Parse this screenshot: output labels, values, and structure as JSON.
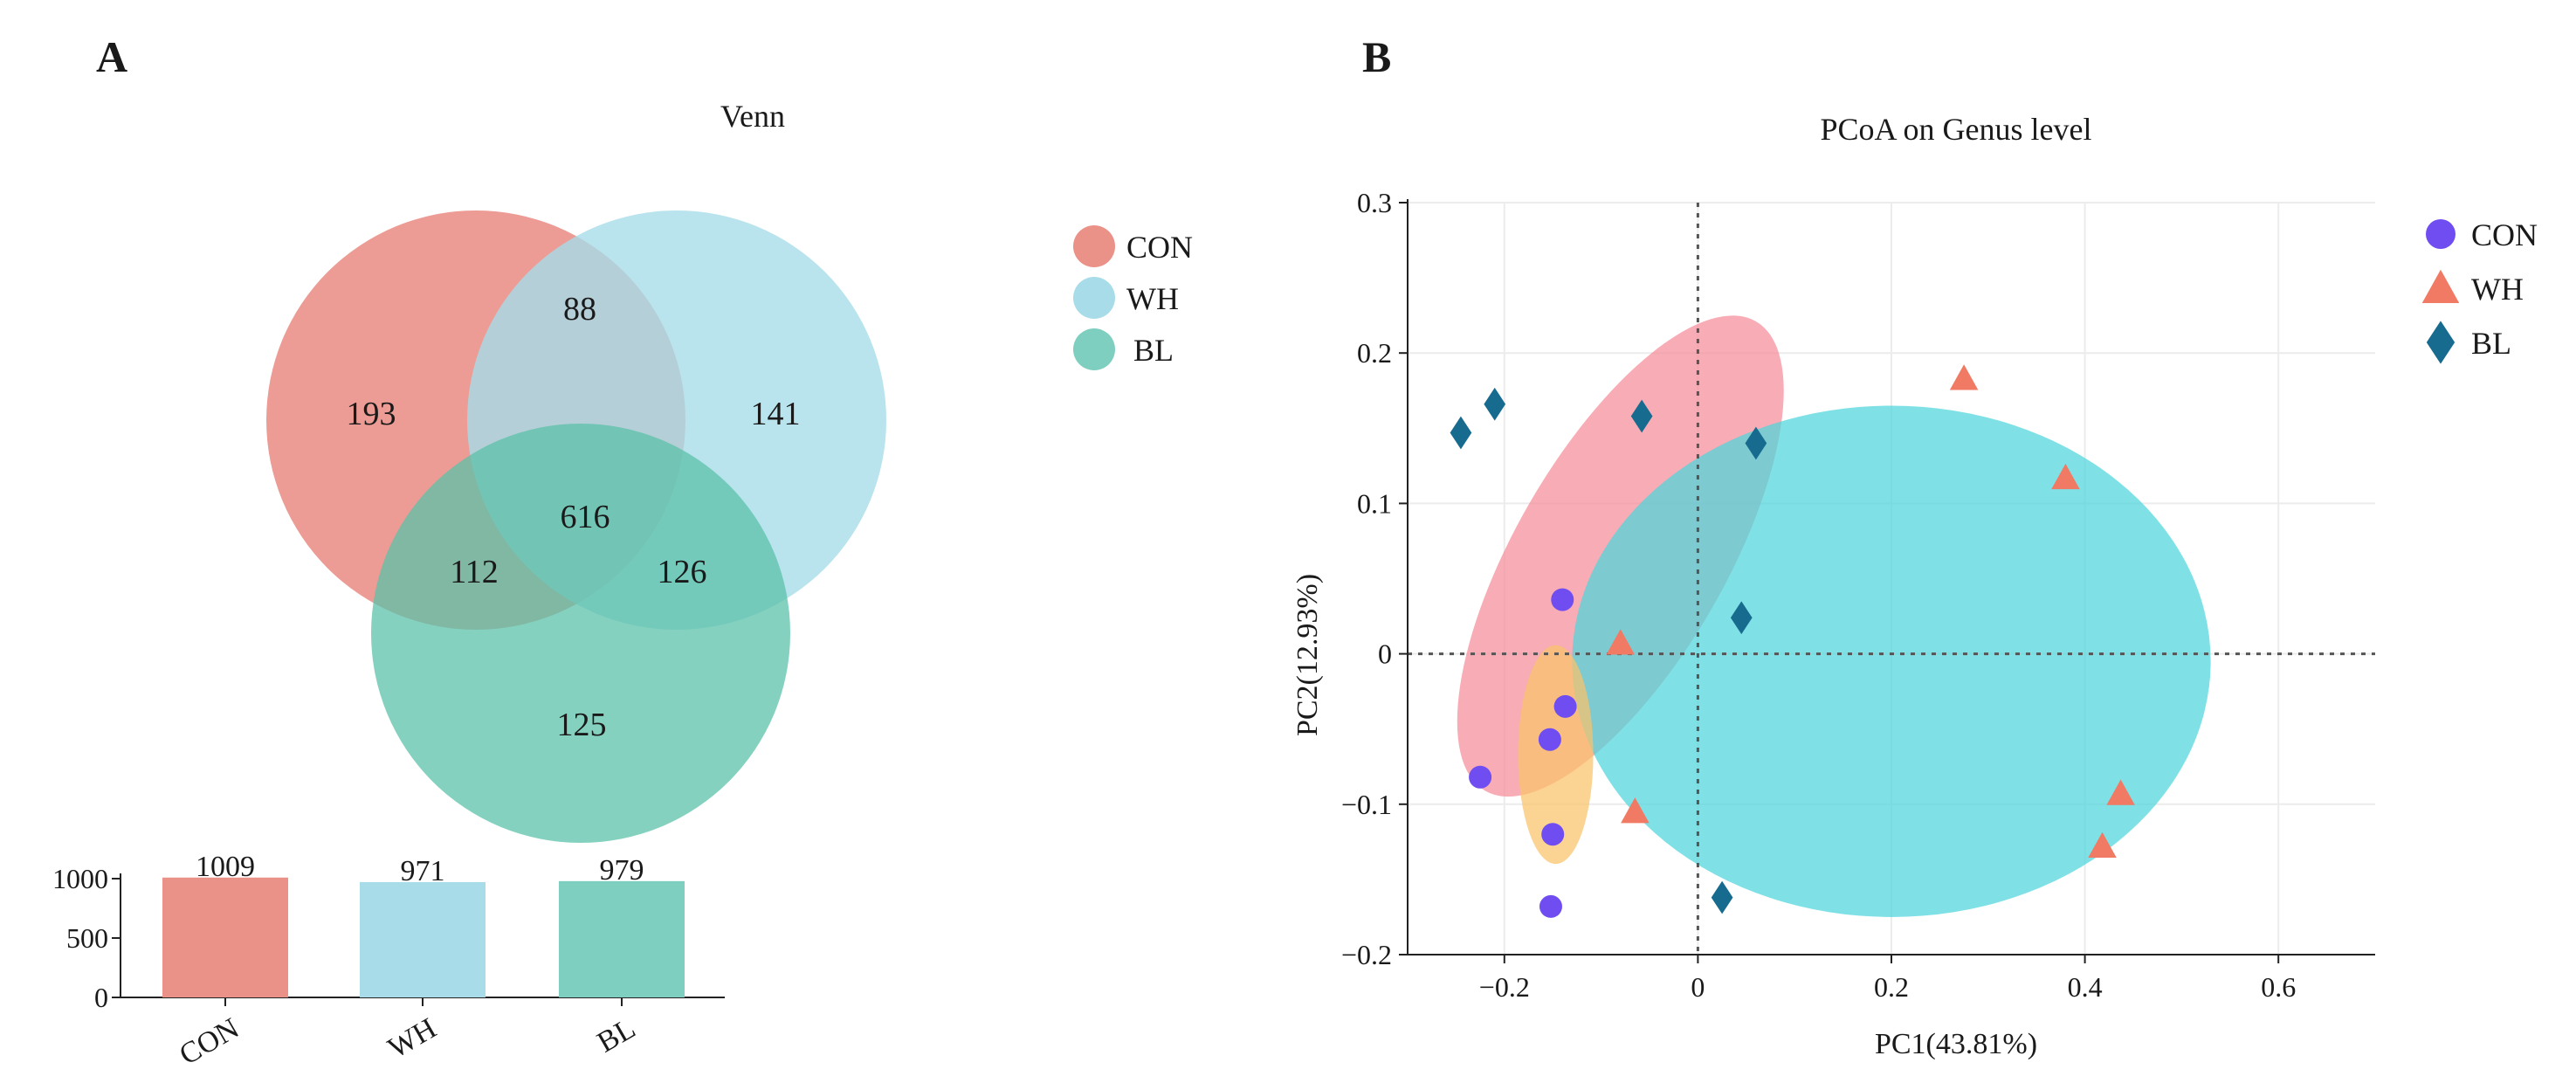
{
  "panels": {
    "a": {
      "label": "A",
      "title": "Venn"
    },
    "b": {
      "label": "B",
      "title": "PCoA on Genus level"
    }
  },
  "chart_data": [
    {
      "type": "venn",
      "title": "Venn",
      "sets": [
        {
          "name": "CON",
          "color": "#ea9188"
        },
        {
          "name": "WH",
          "color": "#a7dce8"
        },
        {
          "name": "BL",
          "color": "#7ecfbf"
        }
      ],
      "regions": {
        "con_only": 193,
        "wh_only": 141,
        "bl_only": 125,
        "con_wh": 88,
        "con_bl": 112,
        "wh_bl": 126,
        "all": 616
      },
      "bar": {
        "type": "bar",
        "categories": [
          "CON",
          "WH",
          "BL"
        ],
        "values": [
          1009,
          971,
          979
        ],
        "value_labels": [
          "1009",
          "971",
          "979"
        ],
        "ylim": [
          0,
          1000
        ],
        "yticks": [
          0,
          500,
          1000
        ],
        "ytick_labels": [
          "0",
          "500",
          "1000"
        ],
        "colors": [
          "#ea9188",
          "#a7dce8",
          "#7ecfbf"
        ]
      }
    },
    {
      "type": "scatter",
      "title": "PCoA on Genus level",
      "xlabel": "PC1(43.81%)",
      "ylabel": "PC2(12.93%)",
      "xlim": [
        -0.3,
        0.7
      ],
      "ylim": [
        -0.2,
        0.3
      ],
      "xticks": [
        -0.2,
        0,
        0.2,
        0.4,
        0.6
      ],
      "xtick_labels": [
        "−0.2",
        "0",
        "0.2",
        "0.4",
        "0.6"
      ],
      "yticks": [
        -0.2,
        -0.1,
        0,
        0.1,
        0.2,
        0.3
      ],
      "ytick_labels": [
        "−0.2",
        "−0.1",
        "0",
        "0.1",
        "0.2",
        "0.3"
      ],
      "grid": true,
      "reference_lines": {
        "x": 0,
        "y": 0
      },
      "legend": "top-right",
      "series": [
        {
          "name": "CON",
          "legend_label": "CON",
          "marker": "circle",
          "color": "#6f4df0",
          "points": [
            [
              -0.14,
              0.036
            ],
            [
              -0.137,
              -0.035
            ],
            [
              -0.153,
              -0.057
            ],
            [
              -0.225,
              -0.082
            ],
            [
              -0.15,
              -0.12
            ],
            [
              -0.152,
              -0.168
            ]
          ]
        },
        {
          "name": "WH",
          "legend_label": "WH",
          "marker": "triangle",
          "color": "#f07a63",
          "points": [
            [
              0.275,
              0.183
            ],
            [
              0.38,
              0.117
            ],
            [
              -0.08,
              0.007
            ],
            [
              -0.065,
              -0.105
            ],
            [
              0.437,
              -0.093
            ],
            [
              0.418,
              -0.128
            ]
          ]
        },
        {
          "name": "BL",
          "legend_label": "BL",
          "marker": "diamond",
          "color": "#176b8f",
          "points": [
            [
              -0.245,
              0.147
            ],
            [
              -0.21,
              0.166
            ],
            [
              -0.058,
              0.158
            ],
            [
              0.06,
              0.14
            ],
            [
              0.045,
              0.024
            ],
            [
              0.025,
              -0.162
            ]
          ]
        }
      ],
      "ellipses": [
        {
          "group": "BL",
          "color": "#f58c98",
          "cx": -0.08,
          "cy": 0.065,
          "rx": 0.28,
          "ry": 0.07,
          "angle_deg": -60
        },
        {
          "group": "WH",
          "color": "#4dd6dc",
          "cx": 0.2,
          "cy": -0.005,
          "rx": 0.33,
          "ry": 0.17,
          "angle_deg": 0
        },
        {
          "group": "CON",
          "color": "#f9c46b",
          "cx": -0.147,
          "cy": -0.067,
          "rx": 0.113,
          "ry": 0.025,
          "angle_deg": -90
        }
      ]
    }
  ]
}
